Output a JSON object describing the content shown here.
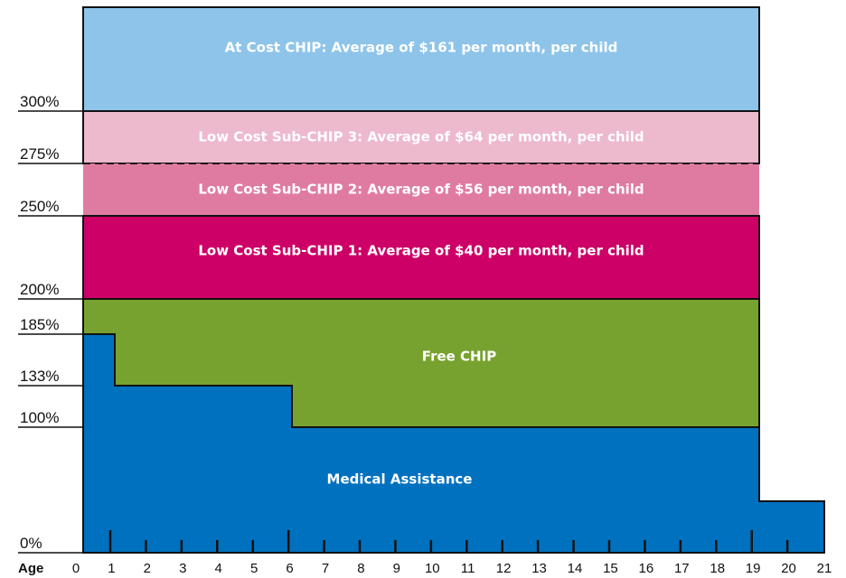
{
  "y_labels": [
    "0%",
    "100%",
    "133%",
    "185%",
    "200%",
    "250%",
    "275%",
    "300%"
  ],
  "x_title": "Age",
  "ages": [
    "0",
    "1",
    "2",
    "3",
    "4",
    "5",
    "6",
    "7",
    "8",
    "9",
    "10",
    "11",
    "12",
    "13",
    "14",
    "15",
    "16",
    "17",
    "18",
    "19",
    "20",
    "21"
  ],
  "bands": {
    "at_cost": "At Cost CHIP: Average of $161 per month, per child",
    "sub3": "Low Cost Sub-CHIP 3: Average of $64 per month, per child",
    "sub2": "Low Cost Sub-CHIP 2: Average of $56 per month, per child",
    "sub1": "Low Cost Sub-CHIP 1: Average of $40 per month, per child",
    "free": "Free CHIP",
    "medical": "Medical Assistance"
  }
}
